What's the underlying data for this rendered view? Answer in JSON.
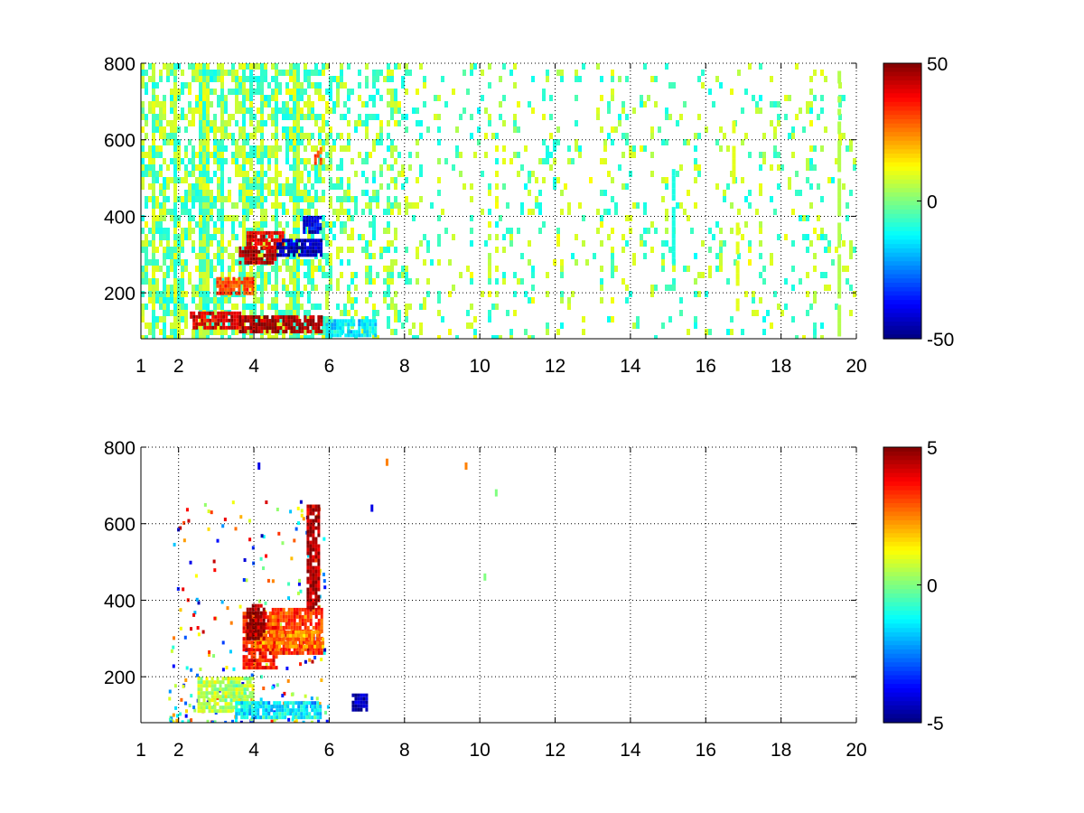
{
  "chart_data": [
    {
      "type": "heatmap",
      "title": "",
      "xlabel": "",
      "ylabel": "",
      "xlim": [
        1,
        20
      ],
      "ylim": [
        80,
        800
      ],
      "xticks": [
        "1",
        "2",
        "4",
        "6",
        "8",
        "10",
        "12",
        "14",
        "16",
        "18",
        "20"
      ],
      "yticks": [
        "200",
        "400",
        "600",
        "800"
      ],
      "grid": true,
      "colormap": "jet",
      "colorbar": {
        "range": [
          -50,
          50
        ],
        "ticks": [
          "50",
          "0",
          "-50"
        ],
        "placement": "right"
      },
      "features": [
        {
          "x": [
            2.3,
            3.6
          ],
          "y": 130,
          "value": 40
        },
        {
          "x": [
            3.6,
            5.8
          ],
          "y": 120,
          "value": 45
        },
        {
          "x": [
            3.0,
            4.0
          ],
          "y": 220,
          "value": 30
        },
        {
          "x": [
            3.6,
            4.6
          ],
          "y": 300,
          "value": 45
        },
        {
          "x": [
            3.8,
            4.8
          ],
          "y": 340,
          "value": 40
        },
        {
          "x": [
            4.6,
            5.8
          ],
          "y": 320,
          "value": -45
        },
        {
          "x": [
            5.3,
            5.8
          ],
          "y": 380,
          "value": -40
        },
        {
          "x": [
            5.6,
            5.8
          ],
          "y": 560,
          "value": 30
        },
        {
          "x": [
            5.9,
            7.2
          ],
          "y": 110,
          "value": -15
        }
      ],
      "streaks": [
        {
          "x": 16.7,
          "y": [
            500,
            650
          ],
          "value": 10
        },
        {
          "x": 16.8,
          "y": [
            160,
            400
          ],
          "value": 10
        },
        {
          "x": 15.1,
          "y": [
            280,
            540
          ],
          "value": -10
        },
        {
          "x": 19.5,
          "y": [
            90,
            780
          ],
          "value": 5
        }
      ]
    },
    {
      "type": "heatmap",
      "title": "",
      "xlabel": "",
      "ylabel": "",
      "xlim": [
        1,
        20
      ],
      "ylim": [
        80,
        800
      ],
      "xticks": [
        "1",
        "2",
        "4",
        "6",
        "8",
        "10",
        "12",
        "14",
        "16",
        "18",
        "20"
      ],
      "yticks": [
        "200",
        "400",
        "600",
        "800"
      ],
      "grid": true,
      "colormap": "jet",
      "colorbar": {
        "range": [
          -5,
          5
        ],
        "ticks": [
          "5",
          "0",
          "-5"
        ],
        "placement": "right"
      },
      "features": [
        {
          "x": [
            3.7,
            4.6
          ],
          "y": [
            220,
            370
          ],
          "value": 3.5
        },
        {
          "x": [
            4.4,
            5.8
          ],
          "y": [
            260,
            380
          ],
          "value": 3.2
        },
        {
          "x": [
            4.0,
            5.8
          ],
          "y": 300,
          "value": 2.5
        },
        {
          "x": [
            3.8,
            4.3
          ],
          "y": [
            300,
            390
          ],
          "value": 5
        },
        {
          "x": [
            5.4,
            5.7
          ],
          "y": [
            380,
            650
          ],
          "value": 4.5
        },
        {
          "x": [
            2.5,
            4.0
          ],
          "y": [
            110,
            200
          ],
          "value": 0.5
        },
        {
          "x": [
            3.5,
            5.8
          ],
          "y": 115,
          "value": -1.5
        },
        {
          "x": [
            6.6,
            7.0
          ],
          "y": 135,
          "value": -4.5
        }
      ]
    }
  ]
}
